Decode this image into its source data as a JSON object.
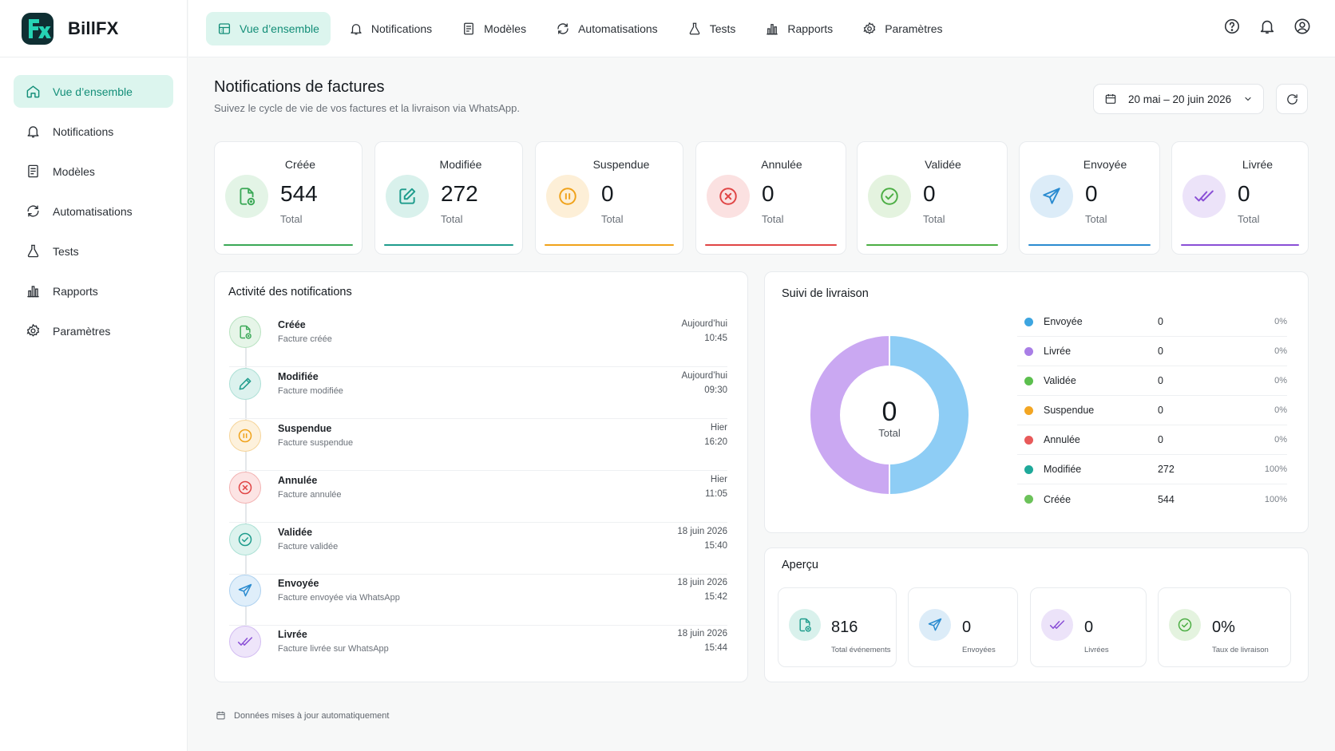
{
  "app": {
    "name": "BillFX",
    "logo_text": "FX"
  },
  "top_nav": [
    {
      "label": "Vue d’ensemble",
      "icon": "dashboard-icon",
      "active": true
    },
    {
      "label": "Notifications",
      "icon": "bell-icon"
    },
    {
      "label": "Modèles",
      "icon": "document-icon"
    },
    {
      "label": "Automatisations",
      "icon": "refresh-icon"
    },
    {
      "label": "Tests",
      "icon": "flask-icon"
    },
    {
      "label": "Rapports",
      "icon": "chart-icon"
    },
    {
      "label": "Paramètres",
      "icon": "gear-icon"
    }
  ],
  "sidebar": [
    {
      "label": "Vue d’ensemble",
      "icon": "home-icon",
      "active": true
    },
    {
      "label": "Notifications",
      "icon": "bell-icon"
    },
    {
      "label": "Modèles",
      "icon": "document-icon"
    },
    {
      "label": "Automatisations",
      "icon": "refresh-icon"
    },
    {
      "label": "Tests",
      "icon": "flask-icon"
    },
    {
      "label": "Rapports",
      "icon": "chart-icon"
    },
    {
      "label": "Paramètres",
      "icon": "gear-icon"
    }
  ],
  "header": {
    "title": "Notifications de factures",
    "subtitle": "Suivez le cycle de vie de vos factures et la livraison via WhatsApp.",
    "date_range": "20 mai – 20 juin 2026"
  },
  "stats": [
    {
      "label": "Créée",
      "value": "544",
      "total": "Total",
      "color": "#3aa856",
      "bg": "#e3f4e6",
      "icon": "file-plus-icon"
    },
    {
      "label": "Modifiée",
      "value": "272",
      "total": "Total",
      "color": "#1e9c8c",
      "bg": "#d9f1ec",
      "icon": "edit-icon"
    },
    {
      "label": "Suspendue",
      "value": "0",
      "total": "Total",
      "color": "#f0a21a",
      "bg": "#fdefd7",
      "icon": "pause-icon"
    },
    {
      "label": "Annulée",
      "value": "0",
      "total": "Total",
      "color": "#e04545",
      "bg": "#fbe1e1",
      "icon": "cancel-icon"
    },
    {
      "label": "Validée",
      "value": "0",
      "total": "Total",
      "color": "#4cae44",
      "bg": "#e4f3df",
      "icon": "check-icon"
    },
    {
      "label": "Envoyée",
      "value": "0",
      "total": "Total",
      "color": "#2a8bd0",
      "bg": "#dcecf8",
      "icon": "send-icon"
    },
    {
      "label": "Livrée",
      "value": "0",
      "total": "Total",
      "color": "#8a4fd6",
      "bg": "#ece3f9",
      "icon": "double-check-icon"
    }
  ],
  "activity": {
    "title": "Activité des notifications",
    "items": [
      {
        "title": "Créée",
        "desc": "Facture créée",
        "date": "Aujourd’hui",
        "time": "10:45"
      },
      {
        "title": "Modifiée",
        "desc": "Facture modifiée",
        "date": "Aujourd’hui",
        "time": "09:30"
      },
      {
        "title": "Suspendue",
        "desc": "Facture suspendue",
        "date": "Hier",
        "time": "16:20"
      },
      {
        "title": "Annulée",
        "desc": "Facture annulée",
        "date": "Hier",
        "time": "11:05"
      },
      {
        "title": "Validée",
        "desc": "Facture validée",
        "date": "18 juin 2026",
        "time": "15:40"
      },
      {
        "title": "Envoyée",
        "desc": "Facture envoyée via WhatsApp",
        "date": "18 juin 2026",
        "time": "15:42"
      },
      {
        "title": "Livrée",
        "desc": "Facture livrée sur WhatsApp",
        "date": "18 juin 2026",
        "time": "15:44"
      }
    ]
  },
  "delivery": {
    "title": "Suivi de livraison",
    "center_value": "0",
    "center_label": "Total",
    "legend": [
      {
        "name": "Envoyée",
        "count": "0",
        "pct": "0%",
        "color": "#3da5e0"
      },
      {
        "name": "Livrée",
        "count": "0",
        "pct": "0%",
        "color": "#a97ee6"
      },
      {
        "name": "Validée",
        "count": "0",
        "pct": "0%",
        "color": "#5cbf4e"
      },
      {
        "name": "Suspendue",
        "count": "0",
        "pct": "0%",
        "color": "#f3a623"
      },
      {
        "name": "Annulée",
        "count": "0",
        "pct": "0%",
        "color": "#e85a5a"
      },
      {
        "name": "Modifiée",
        "count": "272",
        "pct": "100%",
        "color": "#1fa99a"
      },
      {
        "name": "Créée",
        "count": "544",
        "pct": "100%",
        "color": "#6cc25a"
      }
    ]
  },
  "chart_data": {
    "type": "pie",
    "categories": [
      "Envoyée",
      "Livrée"
    ],
    "values": [
      50,
      50
    ],
    "colors": [
      "#8ecdf5",
      "#caa8f2"
    ],
    "center_value": "0",
    "center_label": "Total"
  },
  "overview": {
    "title": "Aperçu",
    "cards": [
      {
        "value": "816",
        "label": "Total événements",
        "color": "#1e9c8c",
        "bg": "#d9f1ec",
        "icon": "file-plus-icon"
      },
      {
        "value": "0",
        "label": "Envoyées",
        "color": "#2a8bd0",
        "bg": "#dcecf8",
        "icon": "send-icon"
      },
      {
        "value": "0",
        "label": "Livrées",
        "color": "#8a4fd6",
        "bg": "#ece3f9",
        "icon": "double-check-icon"
      },
      {
        "value": "0%",
        "label": "Taux de livraison",
        "color": "#4cae44",
        "bg": "#e4f3df",
        "icon": "check-icon"
      }
    ]
  },
  "footer": {
    "note": "Données mises à jour automatiquement"
  }
}
